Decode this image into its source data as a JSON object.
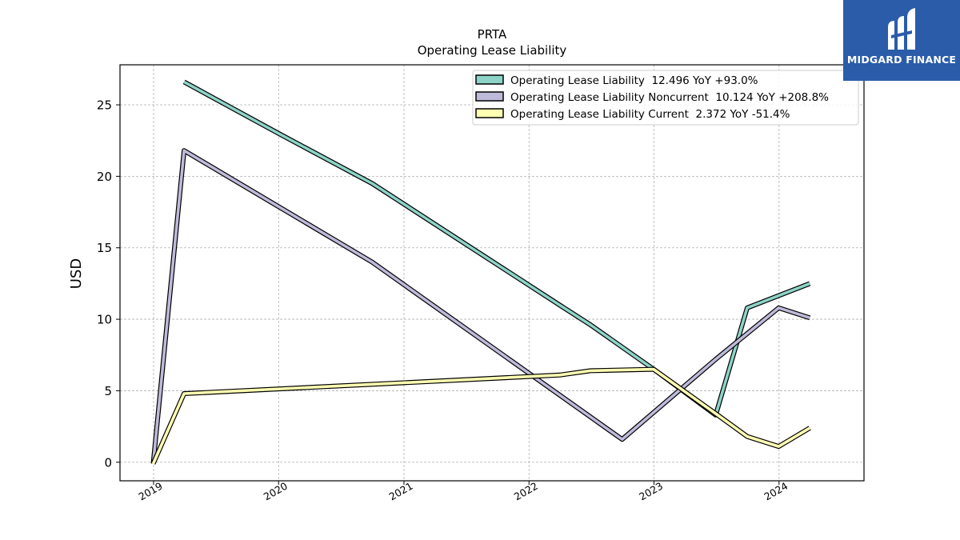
{
  "chart_data": {
    "type": "line",
    "title": "PRTA",
    "subtitle": "Operating Lease Liability",
    "ylabel": "USD",
    "xlabel": "",
    "ylim": [
      -1.3,
      27.8
    ],
    "xlim": [
      "2018-09-25",
      "2024-09-05"
    ],
    "yticks": [
      0,
      5,
      10,
      15,
      20,
      25
    ],
    "xticks": [
      "2019-01-01",
      "2020-01-01",
      "2021-01-01",
      "2022-01-01",
      "2023-01-01",
      "2024-01-01"
    ],
    "xtick_labels": [
      "2019",
      "2020",
      "2021",
      "2022",
      "2023",
      "2024"
    ],
    "grid": true,
    "legend_position": "top-right",
    "series": [
      {
        "name": "Operating Lease Liability  12.496 YoY +93.0%",
        "color": "#8dd3c7",
        "points": [
          [
            "2019-03-31",
            26.6
          ],
          [
            "2020-01-01",
            23.0
          ],
          [
            "2020-09-30",
            19.5
          ],
          [
            "2022-03-31",
            11.0
          ],
          [
            "2022-06-30",
            9.6
          ],
          [
            "2022-12-31",
            6.5
          ],
          [
            "2023-06-30",
            3.3
          ],
          [
            "2023-09-30",
            10.8
          ],
          [
            "2024-03-31",
            12.5
          ]
        ]
      },
      {
        "name": "Operating Lease Liability Noncurrent  10.124 YoY +208.8%",
        "color": "#bebada",
        "points": [
          [
            "2018-12-31",
            -0.1
          ],
          [
            "2019-03-31",
            21.8
          ],
          [
            "2020-09-30",
            14.0
          ],
          [
            "2022-09-30",
            1.6
          ],
          [
            "2023-06-30",
            7.2
          ],
          [
            "2023-12-31",
            10.8
          ],
          [
            "2024-03-31",
            10.1
          ]
        ]
      },
      {
        "name": "Operating Lease Liability Current  2.372 YoY -51.4%",
        "color": "#ffffb3",
        "points": [
          [
            "2018-12-31",
            -0.1
          ],
          [
            "2019-03-31",
            4.8
          ],
          [
            "2022-03-31",
            6.1
          ],
          [
            "2022-06-30",
            6.4
          ],
          [
            "2022-12-31",
            6.5
          ],
          [
            "2023-06-30",
            3.4
          ],
          [
            "2023-09-30",
            1.8
          ],
          [
            "2023-12-31",
            1.1
          ],
          [
            "2024-03-31",
            2.4
          ]
        ]
      }
    ]
  },
  "logo": {
    "text": "MIDGARD FINANCE",
    "background": "#2a5caa"
  }
}
